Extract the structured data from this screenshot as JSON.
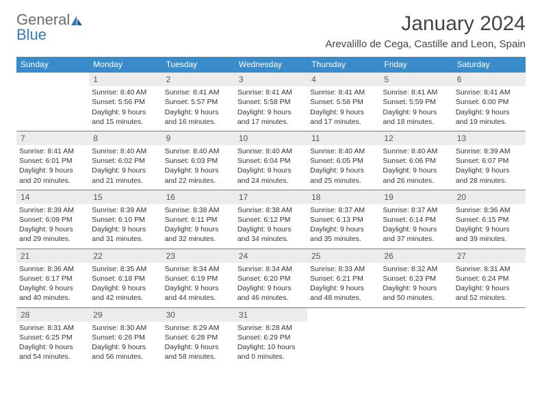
{
  "logo": {
    "text_gray": "General",
    "text_blue": "Blue"
  },
  "title": "January 2024",
  "location": "Arevalillo de Cega, Castille and Leon, Spain",
  "colors": {
    "header_bg": "#3a8bc9",
    "header_text": "#ffffff",
    "daynum_bg": "#ececec",
    "body_text": "#333333",
    "rule": "#3a8bc9"
  },
  "dows": [
    "Sunday",
    "Monday",
    "Tuesday",
    "Wednesday",
    "Thursday",
    "Friday",
    "Saturday"
  ],
  "weeks": [
    [
      null,
      {
        "n": "1",
        "sr": "8:40 AM",
        "ss": "5:56 PM",
        "dl": "9 hours and 15 minutes."
      },
      {
        "n": "2",
        "sr": "8:41 AM",
        "ss": "5:57 PM",
        "dl": "9 hours and 16 minutes."
      },
      {
        "n": "3",
        "sr": "8:41 AM",
        "ss": "5:58 PM",
        "dl": "9 hours and 17 minutes."
      },
      {
        "n": "4",
        "sr": "8:41 AM",
        "ss": "5:58 PM",
        "dl": "9 hours and 17 minutes."
      },
      {
        "n": "5",
        "sr": "8:41 AM",
        "ss": "5:59 PM",
        "dl": "9 hours and 18 minutes."
      },
      {
        "n": "6",
        "sr": "8:41 AM",
        "ss": "6:00 PM",
        "dl": "9 hours and 19 minutes."
      }
    ],
    [
      {
        "n": "7",
        "sr": "8:41 AM",
        "ss": "6:01 PM",
        "dl": "9 hours and 20 minutes."
      },
      {
        "n": "8",
        "sr": "8:40 AM",
        "ss": "6:02 PM",
        "dl": "9 hours and 21 minutes."
      },
      {
        "n": "9",
        "sr": "8:40 AM",
        "ss": "6:03 PM",
        "dl": "9 hours and 22 minutes."
      },
      {
        "n": "10",
        "sr": "8:40 AM",
        "ss": "6:04 PM",
        "dl": "9 hours and 24 minutes."
      },
      {
        "n": "11",
        "sr": "8:40 AM",
        "ss": "6:05 PM",
        "dl": "9 hours and 25 minutes."
      },
      {
        "n": "12",
        "sr": "8:40 AM",
        "ss": "6:06 PM",
        "dl": "9 hours and 26 minutes."
      },
      {
        "n": "13",
        "sr": "8:39 AM",
        "ss": "6:07 PM",
        "dl": "9 hours and 28 minutes."
      }
    ],
    [
      {
        "n": "14",
        "sr": "8:39 AM",
        "ss": "6:09 PM",
        "dl": "9 hours and 29 minutes."
      },
      {
        "n": "15",
        "sr": "8:39 AM",
        "ss": "6:10 PM",
        "dl": "9 hours and 31 minutes."
      },
      {
        "n": "16",
        "sr": "8:38 AM",
        "ss": "6:11 PM",
        "dl": "9 hours and 32 minutes."
      },
      {
        "n": "17",
        "sr": "8:38 AM",
        "ss": "6:12 PM",
        "dl": "9 hours and 34 minutes."
      },
      {
        "n": "18",
        "sr": "8:37 AM",
        "ss": "6:13 PM",
        "dl": "9 hours and 35 minutes."
      },
      {
        "n": "19",
        "sr": "8:37 AM",
        "ss": "6:14 PM",
        "dl": "9 hours and 37 minutes."
      },
      {
        "n": "20",
        "sr": "8:36 AM",
        "ss": "6:15 PM",
        "dl": "9 hours and 39 minutes."
      }
    ],
    [
      {
        "n": "21",
        "sr": "8:36 AM",
        "ss": "6:17 PM",
        "dl": "9 hours and 40 minutes."
      },
      {
        "n": "22",
        "sr": "8:35 AM",
        "ss": "6:18 PM",
        "dl": "9 hours and 42 minutes."
      },
      {
        "n": "23",
        "sr": "8:34 AM",
        "ss": "6:19 PM",
        "dl": "9 hours and 44 minutes."
      },
      {
        "n": "24",
        "sr": "8:34 AM",
        "ss": "6:20 PM",
        "dl": "9 hours and 46 minutes."
      },
      {
        "n": "25",
        "sr": "8:33 AM",
        "ss": "6:21 PM",
        "dl": "9 hours and 48 minutes."
      },
      {
        "n": "26",
        "sr": "8:32 AM",
        "ss": "6:23 PM",
        "dl": "9 hours and 50 minutes."
      },
      {
        "n": "27",
        "sr": "8:31 AM",
        "ss": "6:24 PM",
        "dl": "9 hours and 52 minutes."
      }
    ],
    [
      {
        "n": "28",
        "sr": "8:31 AM",
        "ss": "6:25 PM",
        "dl": "9 hours and 54 minutes."
      },
      {
        "n": "29",
        "sr": "8:30 AM",
        "ss": "6:26 PM",
        "dl": "9 hours and 56 minutes."
      },
      {
        "n": "30",
        "sr": "8:29 AM",
        "ss": "6:28 PM",
        "dl": "9 hours and 58 minutes."
      },
      {
        "n": "31",
        "sr": "8:28 AM",
        "ss": "6:29 PM",
        "dl": "10 hours and 0 minutes."
      },
      null,
      null,
      null
    ]
  ],
  "labels": {
    "sunrise": "Sunrise:",
    "sunset": "Sunset:",
    "daylight": "Daylight:"
  }
}
